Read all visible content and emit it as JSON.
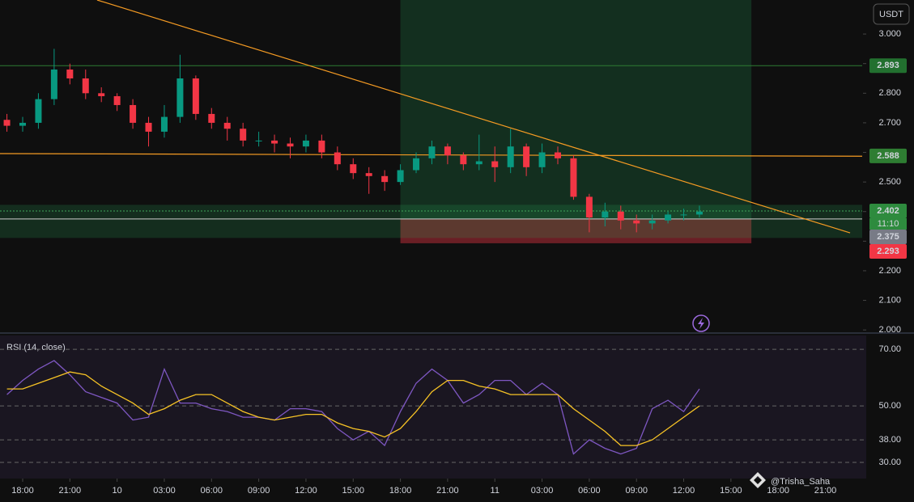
{
  "chart_data": [
    {
      "type": "candlestick",
      "axis_unit": "USDT",
      "x": [
        -1,
        0,
        1,
        2,
        3,
        4,
        5,
        6,
        7,
        8,
        9,
        10,
        11,
        12,
        13,
        14,
        15,
        16,
        17,
        18,
        19,
        20,
        21,
        22,
        23,
        24,
        25,
        26,
        27,
        28,
        29,
        30,
        31,
        32,
        33,
        34,
        35,
        36,
        37,
        38,
        39,
        40,
        41,
        42,
        43
      ],
      "open": [
        2.71,
        2.69,
        2.7,
        2.78,
        2.88,
        2.85,
        2.8,
        2.79,
        2.76,
        2.7,
        2.67,
        2.72,
        2.85,
        2.73,
        2.7,
        2.68,
        2.64,
        2.64,
        2.63,
        2.62,
        2.64,
        2.6,
        2.56,
        2.53,
        2.52,
        2.5,
        2.54,
        2.58,
        2.62,
        2.59,
        2.56,
        2.57,
        2.55,
        2.62,
        2.55,
        2.6,
        2.58,
        2.45,
        2.38,
        2.4,
        2.37,
        2.36,
        2.37,
        2.39,
        2.39
      ],
      "high": [
        2.73,
        2.72,
        2.8,
        2.95,
        2.9,
        2.88,
        2.82,
        2.8,
        2.78,
        2.72,
        2.76,
        2.93,
        2.86,
        2.75,
        2.72,
        2.7,
        2.67,
        2.66,
        2.65,
        2.66,
        2.66,
        2.62,
        2.58,
        2.55,
        2.54,
        2.56,
        2.6,
        2.64,
        2.63,
        2.6,
        2.66,
        2.62,
        2.68,
        2.63,
        2.63,
        2.62,
        2.59,
        2.46,
        2.43,
        2.42,
        2.39,
        2.39,
        2.4,
        2.41,
        2.42
      ],
      "low": [
        2.67,
        2.67,
        2.68,
        2.76,
        2.83,
        2.78,
        2.77,
        2.74,
        2.68,
        2.62,
        2.65,
        2.7,
        2.71,
        2.68,
        2.64,
        2.62,
        2.62,
        2.6,
        2.58,
        2.6,
        2.58,
        2.54,
        2.51,
        2.46,
        2.47,
        2.49,
        2.53,
        2.56,
        2.56,
        2.54,
        2.54,
        2.5,
        2.53,
        2.52,
        2.53,
        2.56,
        2.44,
        2.33,
        2.35,
        2.34,
        2.33,
        2.34,
        2.36,
        2.37,
        2.38
      ],
      "close": [
        2.69,
        2.7,
        2.78,
        2.88,
        2.85,
        2.8,
        2.79,
        2.76,
        2.7,
        2.67,
        2.72,
        2.85,
        2.73,
        2.7,
        2.68,
        2.64,
        2.64,
        2.63,
        2.62,
        2.64,
        2.6,
        2.56,
        2.53,
        2.52,
        2.5,
        2.54,
        2.58,
        2.62,
        2.59,
        2.56,
        2.57,
        2.55,
        2.62,
        2.55,
        2.6,
        2.58,
        2.45,
        2.38,
        2.4,
        2.37,
        2.36,
        2.37,
        2.39,
        2.39,
        2.4
      ],
      "up_color": "#089981",
      "down_color": "#f23645",
      "xlim": [
        -1.44,
        53.34
      ],
      "xticks": [
        {
          "value": 0,
          "label": "18:00"
        },
        {
          "value": 3,
          "label": "21:00"
        },
        {
          "value": 6,
          "label": "10"
        },
        {
          "value": 9,
          "label": "03:00"
        },
        {
          "value": 12,
          "label": "06:00"
        },
        {
          "value": 15,
          "label": "09:00"
        },
        {
          "value": 18,
          "label": "12:00"
        },
        {
          "value": 21,
          "label": "15:00"
        },
        {
          "value": 24,
          "label": "18:00"
        },
        {
          "value": 27,
          "label": "21:00"
        },
        {
          "value": 30,
          "label": "11"
        },
        {
          "value": 33,
          "label": "03:00"
        },
        {
          "value": 36,
          "label": "06:00"
        },
        {
          "value": 39,
          "label": "09:00"
        },
        {
          "value": 42,
          "label": "12:00"
        },
        {
          "value": 45,
          "label": "15:00"
        },
        {
          "value": 48,
          "label": "18:00"
        },
        {
          "value": 51,
          "label": "21:00"
        }
      ],
      "ylim": [
        1.995,
        3.115
      ],
      "yticks": [
        {
          "value": 3.0,
          "label": "3.000"
        },
        {
          "value": 2.9,
          "label": "2.900"
        },
        {
          "value": 2.8,
          "label": "2.800"
        },
        {
          "value": 2.7,
          "label": "2.700"
        },
        {
          "value": 2.6,
          "label": "2.600"
        },
        {
          "value": 2.5,
          "label": "2.500"
        },
        {
          "value": 2.4,
          "label": "2.400"
        },
        {
          "value": 2.3,
          "label": "2.300"
        },
        {
          "value": 2.2,
          "label": "2.200"
        },
        {
          "value": 2.1,
          "label": "2.100"
        },
        {
          "value": 2.0,
          "label": "2.000"
        }
      ],
      "zones": [
        {
          "x": [
            24,
            46.3
          ],
          "y": [
            2.375,
            3.115
          ],
          "color": "rgba(38,166,91,0.22)"
        },
        {
          "x": [
            24,
            46.3
          ],
          "y": [
            2.293,
            2.375
          ],
          "color": "rgba(242,54,69,0.4)"
        },
        {
          "x": [
            -1.44,
            53.34
          ],
          "y": [
            2.311,
            2.423
          ],
          "color": "rgba(38,166,91,0.2)"
        }
      ],
      "hlines": [
        {
          "value": 2.893,
          "color": "#2e7d32",
          "dash": false
        },
        {
          "value": 2.402,
          "color": "#3fa65a",
          "dash": true
        },
        {
          "value": 2.375,
          "color": "#d0d0d0",
          "dash": false
        }
      ],
      "trendlines": [
        {
          "points": [
            [
              4.73,
              3.115
            ],
            [
              52.57,
              2.328
            ]
          ],
          "color": "#f59b23"
        },
        {
          "points": [
            [
              -1.44,
              2.596
            ],
            [
              53.34,
              2.587
            ]
          ],
          "color": "#f59b23"
        }
      ],
      "price_labels": [
        {
          "value": 2.893,
          "label": "2.893",
          "color": "#22702f"
        },
        {
          "value": 2.588,
          "label": "2.588",
          "color": "#2e7d32"
        },
        {
          "value": 2.402,
          "label": "2.402",
          "color": "#2e8b3e"
        },
        {
          "value": 2.375,
          "label": "2.375",
          "color": "#787b86"
        },
        {
          "value": 2.293,
          "label": "2.293",
          "color": "#f23645"
        }
      ],
      "countdown": "11:10",
      "watermark": "@Trisha_Saha"
    },
    {
      "type": "line",
      "title": "RSI (14, close)",
      "x": [
        -1,
        0,
        1,
        2,
        3,
        4,
        5,
        6,
        7,
        8,
        9,
        10,
        11,
        12,
        13,
        14,
        15,
        16,
        17,
        18,
        19,
        20,
        21,
        22,
        23,
        24,
        25,
        26,
        27,
        28,
        29,
        30,
        31,
        32,
        33,
        34,
        35,
        36,
        37,
        38,
        39,
        40,
        41,
        42,
        43
      ],
      "series": [
        {
          "color": "#7e57c2",
          "values": [
            54,
            59,
            63,
            66,
            61,
            55,
            53,
            51,
            45,
            46,
            63,
            51,
            51,
            49,
            48,
            46,
            46,
            45,
            49,
            49,
            48,
            42,
            38,
            41,
            36,
            48,
            58,
            63,
            59,
            51,
            54,
            59,
            59,
            54,
            58,
            54,
            33,
            38,
            35,
            33,
            35,
            49,
            52,
            48,
            56
          ]
        },
        {
          "color": "#f7c325",
          "values": [
            56,
            56,
            58,
            60,
            62,
            61,
            57,
            54,
            51,
            47,
            49,
            52,
            54,
            54,
            51,
            48,
            46,
            45,
            46,
            47,
            47,
            44,
            42,
            41,
            39,
            42,
            48,
            55,
            59,
            59,
            57,
            56,
            54,
            54,
            54,
            54,
            49,
            45,
            41,
            36,
            36,
            38,
            42,
            46,
            50
          ]
        }
      ],
      "ylim": [
        24.3,
        74.9
      ],
      "yticks": [
        {
          "value": 70,
          "label": "70.00"
        },
        {
          "value": 50,
          "label": "50.00"
        },
        {
          "value": 38,
          "label": "38.00"
        },
        {
          "value": 30,
          "label": "30.00"
        }
      ]
    }
  ]
}
